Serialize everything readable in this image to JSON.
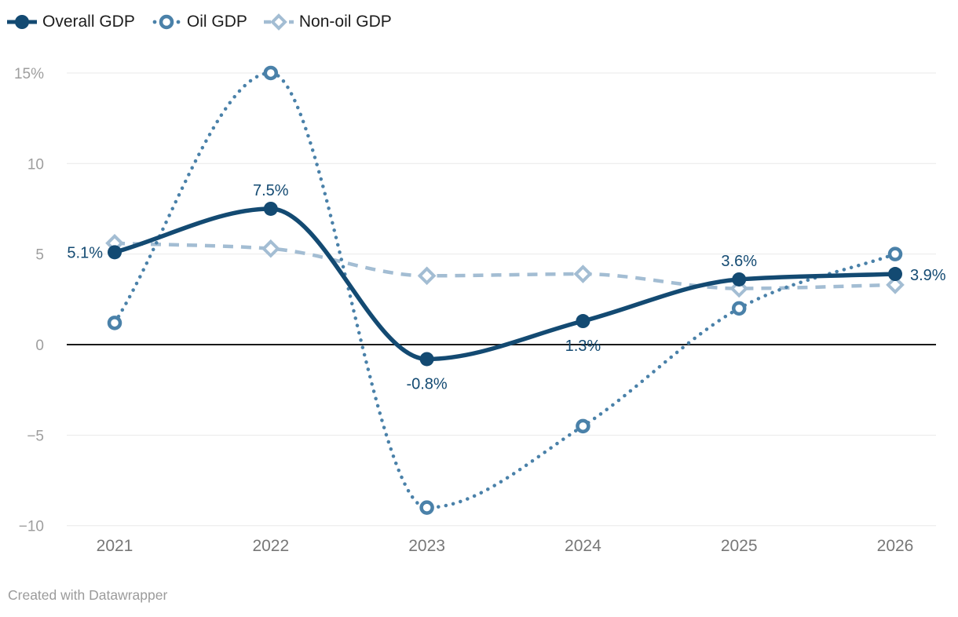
{
  "legend": {
    "items": [
      {
        "key": "overall",
        "label": "Overall GDP"
      },
      {
        "key": "oil",
        "label": "Oil GDP"
      },
      {
        "key": "nonoil",
        "label": "Non-oil GDP"
      }
    ]
  },
  "footer": {
    "credit": "Created with Datawrapper"
  },
  "colors": {
    "overall": "#134a72",
    "oil": "#4a81a9",
    "nonoil": "#a3bdd3",
    "grid": "#e9e9e9",
    "zero_line": "#1a1a1a",
    "axis_tick": "#9e9e9e",
    "axis_label": "#777777",
    "credit": "#9b9b9b"
  },
  "chart_data": {
    "type": "line",
    "categories": [
      "2021",
      "2022",
      "2023",
      "2024",
      "2025",
      "2026"
    ],
    "series": [
      {
        "name": "Overall GDP",
        "key": "overall",
        "values": [
          5.1,
          7.5,
          -0.8,
          1.3,
          3.6,
          3.9
        ],
        "point_labels": [
          "5.1%",
          "7.5%",
          "-0.8%",
          "1.3%",
          "3.6%",
          "3.9%"
        ],
        "label_placements": [
          "left",
          "above",
          "below",
          "below",
          "above",
          "right"
        ]
      },
      {
        "name": "Oil GDP",
        "key": "oil",
        "values": [
          1.2,
          15,
          -9,
          -4.5,
          2,
          5
        ]
      },
      {
        "name": "Non-oil GDP",
        "key": "nonoil",
        "values": [
          5.6,
          5.3,
          3.8,
          3.9,
          3.1,
          3.3
        ]
      }
    ],
    "ylim": [
      -10,
      15
    ],
    "y_ticks": [
      {
        "v": 15,
        "label": "15%"
      },
      {
        "v": 10,
        "label": "10"
      },
      {
        "v": 5,
        "label": "5"
      },
      {
        "v": 0,
        "label": "0"
      },
      {
        "v": -5,
        "label": "−5"
      },
      {
        "v": -10,
        "label": "−10"
      }
    ],
    "grid": "horizontal",
    "legend_position": "top-left"
  }
}
